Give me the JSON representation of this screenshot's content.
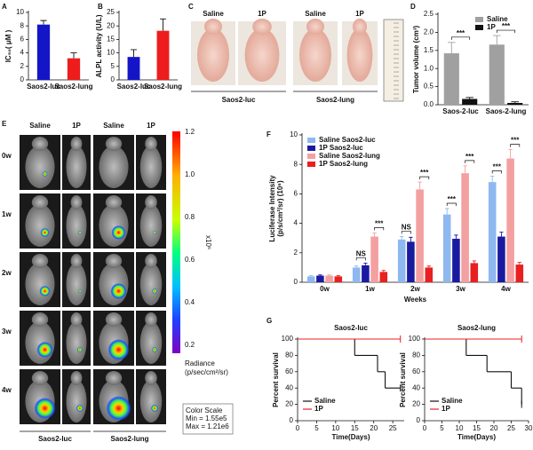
{
  "chart_data": [
    {
      "type": "bar",
      "label": "A",
      "ylabel": [
        "IC₅₀( μM )"
      ],
      "categories": [
        "Saos2-luc",
        "Saos2-lung"
      ],
      "values": [
        8.2,
        3.2
      ],
      "errors": [
        0.6,
        0.8
      ],
      "colors": [
        "#1515c8",
        "#ee1c1c"
      ],
      "ylim": [
        0,
        10
      ],
      "yticks": [
        0,
        2,
        4,
        6,
        8,
        10
      ]
    },
    {
      "type": "bar",
      "label": "B",
      "ylabel": [
        "ALPL activity (U/L)"
      ],
      "categories": [
        "Saos2-luc",
        "Saos2-lung"
      ],
      "values": [
        8.5,
        18.2
      ],
      "errors": [
        2.7,
        4.4
      ],
      "colors": [
        "#1515c8",
        "#ee1c1c"
      ],
      "ylim": [
        0,
        25
      ],
      "yticks": [
        0,
        5,
        10,
        15,
        20,
        25
      ]
    },
    {
      "type": "bar",
      "label": "D",
      "ylabel": [
        "Tumor volume (cm³)"
      ],
      "categories": [
        "Saos-2-luc",
        "Saos-2-lung"
      ],
      "series": [
        {
          "name": "Saline",
          "color": "#a0a0a0",
          "values": [
            1.42,
            1.66
          ],
          "errors": [
            0.3,
            0.25
          ]
        },
        {
          "name": "1P",
          "color": "#111111",
          "values": [
            0.16,
            0.05
          ],
          "errors": [
            0.04,
            0.03
          ]
        }
      ],
      "ylim": [
        0,
        2.5
      ],
      "yticks": [
        {
          "value": 0,
          "label": "0.0"
        },
        {
          "value": 0.5,
          "label": "0.5"
        },
        {
          "value": 1,
          "label": "1.0"
        },
        {
          "value": 1.5,
          "label": "1.5"
        },
        {
          "value": 2,
          "label": "2.0"
        },
        {
          "value": 2.5,
          "label": "2.5"
        }
      ],
      "legend": "upper right",
      "annotations": [
        {
          "text": "***",
          "category": 0,
          "series": [
            0,
            1
          ]
        },
        {
          "text": "***",
          "category": 1,
          "series": [
            0,
            1
          ]
        }
      ]
    },
    {
      "type": "bar",
      "label": "F",
      "ylabel": [
        "Luciferase Intensity",
        "(p/s/cm²/sr) (10⁶)"
      ],
      "xlabel": "Weeks",
      "categories": [
        "0w",
        "1w",
        "2w",
        "3w",
        "4w"
      ],
      "series": [
        {
          "name": "Saline Saos2-luc",
          "color": "#8fb8f0",
          "values": [
            0.4,
            1.0,
            2.9,
            4.6,
            6.8
          ],
          "errors": [
            0.05,
            0.1,
            0.2,
            0.4,
            0.4
          ]
        },
        {
          "name": "1P Saos2-luc",
          "color": "#1a1aa0",
          "values": [
            0.45,
            1.15,
            2.75,
            2.95,
            3.1
          ],
          "errors": [
            0.05,
            0.15,
            0.3,
            0.25,
            0.3
          ]
        },
        {
          "name": "Saline Saos2-lung",
          "color": "#f4a0a0",
          "values": [
            0.45,
            3.1,
            6.3,
            7.4,
            8.4
          ],
          "errors": [
            0.05,
            0.25,
            0.5,
            0.5,
            0.6
          ]
        },
        {
          "name": "1P Saos2-lung",
          "color": "#e82020",
          "values": [
            0.4,
            0.7,
            1.0,
            1.3,
            1.2
          ],
          "errors": [
            0.05,
            0.1,
            0.1,
            0.15,
            0.15
          ]
        }
      ],
      "ylim": [
        0,
        10
      ],
      "yticks": [
        0,
        2,
        4,
        6,
        8,
        10
      ],
      "legend": "upper left",
      "annotations": [
        {
          "text": "NS",
          "category": 1,
          "series": [
            0,
            1
          ]
        },
        {
          "text": "***",
          "category": 1,
          "series": [
            2,
            3
          ]
        },
        {
          "text": "NS",
          "category": 2,
          "series": [
            0,
            1
          ]
        },
        {
          "text": "***",
          "category": 2,
          "series": [
            2,
            3
          ]
        },
        {
          "text": "***",
          "category": 3,
          "series": [
            0,
            1
          ]
        },
        {
          "text": "***",
          "category": 3,
          "series": [
            2,
            3
          ]
        },
        {
          "text": "***",
          "category": 4,
          "series": [
            0,
            1
          ]
        },
        {
          "text": "***",
          "category": 4,
          "series": [
            2,
            3
          ]
        }
      ]
    },
    {
      "type": "step",
      "label": "G",
      "title": "Saos2-luc",
      "ylabel": [
        "Percent survival"
      ],
      "xlabel": "Time(Days)",
      "xlim": [
        0,
        28
      ],
      "xticks": [
        0,
        5,
        10,
        15,
        20,
        25
      ],
      "ylim": [
        0,
        100
      ],
      "yticks": [
        0,
        20,
        40,
        60,
        80,
        100
      ],
      "legend": "lower left",
      "series": [
        {
          "name": "Saline",
          "color": "#111111",
          "x": [
            0,
            15,
            21,
            23,
            27
          ],
          "values": [
            100,
            80,
            60,
            40,
            40
          ]
        },
        {
          "name": "1P",
          "color": "#e82020",
          "x": [
            0,
            27
          ],
          "values": [
            100,
            100
          ]
        }
      ]
    },
    {
      "type": "step",
      "title": "Saos2-lung",
      "ylabel": [
        "Percent survival"
      ],
      "xlabel": "Time(Days)",
      "xlim": [
        0,
        30
      ],
      "xticks": [
        0,
        5,
        10,
        15,
        20,
        25,
        30
      ],
      "ylim": [
        0,
        100
      ],
      "yticks": [
        0,
        20,
        40,
        60,
        80,
        100
      ],
      "legend": "lower left",
      "series": [
        {
          "name": "Saline",
          "color": "#111111",
          "x": [
            0,
            12,
            18,
            25,
            28
          ],
          "values": [
            100,
            80,
            60,
            40,
            20
          ]
        },
        {
          "name": "1P",
          "color": "#e82020",
          "x": [
            0,
            28
          ],
          "values": [
            100,
            100
          ]
        }
      ]
    }
  ],
  "panels": {
    "C": {
      "label": "C",
      "headers": [
        "Saline",
        "1P",
        "Saline",
        "1P"
      ],
      "groups": [
        "Saos2-luc",
        "Saos2-lung"
      ]
    },
    "E": {
      "label": "E",
      "headers": [
        "Saline",
        "1P",
        "Saline",
        "1P"
      ],
      "rows": [
        "0w",
        "1w",
        "2w",
        "3w",
        "4w"
      ],
      "groups": [
        "Saos2-luc",
        "Saos2-lung"
      ],
      "colorbar": {
        "ticks": [
          "1.2",
          "1.0",
          "0.8",
          "0.6",
          "0.4",
          "0.2"
        ],
        "unit": "x10⁶",
        "title": "Radiance",
        "units": "(p/sec/cm²/sr)",
        "scale_title": "Color Scale",
        "min": "Min = 1.55e5",
        "max": "Max = 1.21e6"
      }
    }
  }
}
